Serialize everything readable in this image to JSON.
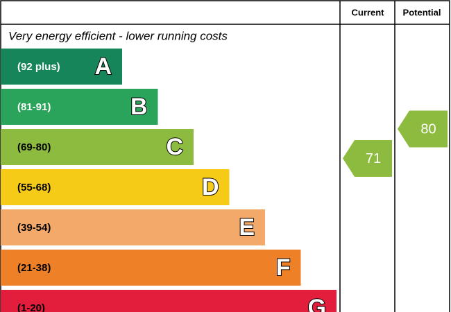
{
  "header": {
    "current": "Current",
    "potential": "Potential"
  },
  "top_note": "Very energy efficient - lower running costs",
  "bands": [
    {
      "range": "(92 plus)",
      "letter": "A",
      "color": "#17855a"
    },
    {
      "range": "(81-91)",
      "letter": "B",
      "color": "#2aa45a"
    },
    {
      "range": "(69-80)",
      "letter": "C",
      "color": "#8dbb3f"
    },
    {
      "range": "(55-68)",
      "letter": "D",
      "color": "#f5cb17"
    },
    {
      "range": "(39-54)",
      "letter": "E",
      "color": "#f2a96a"
    },
    {
      "range": "(21-38)",
      "letter": "F",
      "color": "#ee8027"
    },
    {
      "range": "(1-20)",
      "letter": "G",
      "color": "#e31d3c"
    }
  ],
  "current": {
    "value": 71,
    "color": "#8dbb3f"
  },
  "potential": {
    "value": 80,
    "color": "#8dbb3f"
  }
}
